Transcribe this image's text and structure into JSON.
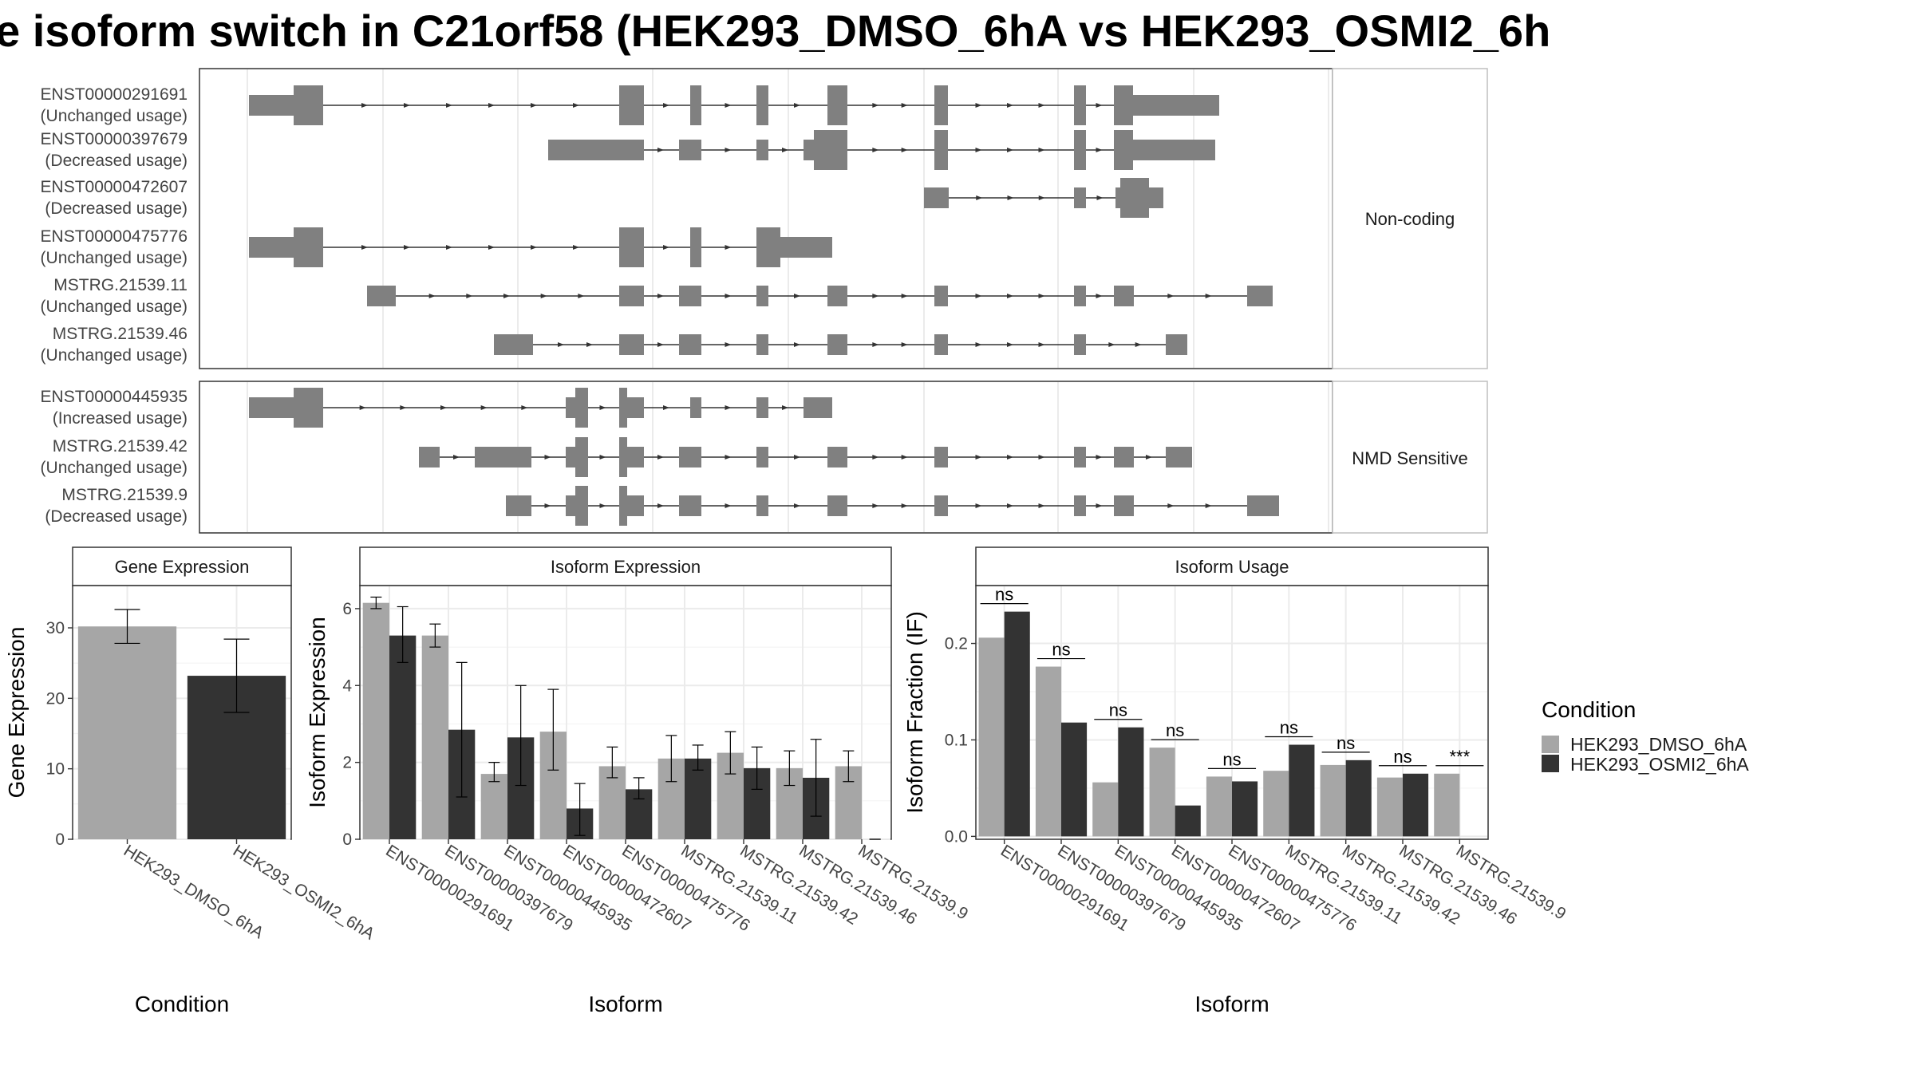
{
  "title": "e isoform switch in C21orf58 (HEK293_DMSO_6hA vs HEK293_OSMI2_6h",
  "colors": {
    "dmso": "#a6a6a6",
    "osmi": "#333333",
    "exon": "#808080",
    "grid": "#ebebeb",
    "panel_border": "#bfbfbf"
  },
  "structure": {
    "groups": [
      {
        "label": "Non-coding",
        "transcripts": [
          {
            "id": "ENST00000291691",
            "usage": "(Unchanged usage)"
          },
          {
            "id": "ENST00000397679",
            "usage": "(Decreased usage)"
          },
          {
            "id": "ENST00000472607",
            "usage": "(Decreased usage)"
          },
          {
            "id": "ENST00000475776",
            "usage": "(Unchanged usage)"
          },
          {
            "id": "MSTRG.21539.11",
            "usage": "(Unchanged usage)"
          },
          {
            "id": "MSTRG.21539.46",
            "usage": "(Unchanged usage)"
          }
        ]
      },
      {
        "label": "NMD Sensitive",
        "transcripts": [
          {
            "id": "ENST00000445935",
            "usage": "(Increased usage)"
          },
          {
            "id": "MSTRG.21539.42",
            "usage": "(Unchanged usage)"
          },
          {
            "id": "MSTRG.21539.9",
            "usage": "(Decreased usage)"
          }
        ]
      }
    ]
  },
  "chart_data": [
    {
      "type": "bar",
      "title": "Gene Expression",
      "xlabel": "Condition",
      "ylabel": "Gene Expression",
      "categories": [
        "HEK293_DMSO_6hA",
        "HEK293_OSMI2_6hA"
      ],
      "values": [
        30.2,
        23.2
      ],
      "error_low": [
        27.8,
        18.0
      ],
      "error_high": [
        32.6,
        28.4
      ],
      "ylim": [
        0,
        36
      ],
      "yticks": [
        0,
        10,
        20,
        30
      ]
    },
    {
      "type": "bar",
      "title": "Isoform Expression",
      "xlabel": "Isoform",
      "ylabel": "Isoform Expression",
      "categories": [
        "ENST00000291691",
        "ENST00000397679",
        "ENST00000445935",
        "ENST00000472607",
        "ENST00000475776",
        "MSTRG.21539.11",
        "MSTRG.21539.42",
        "MSTRG.21539.46",
        "MSTRG.21539.9"
      ],
      "series": [
        {
          "name": "HEK293_DMSO_6hA",
          "values": [
            6.15,
            5.3,
            1.7,
            2.8,
            1.9,
            2.1,
            2.25,
            1.85,
            1.9
          ],
          "error_low": [
            6.0,
            5.0,
            1.5,
            1.8,
            1.6,
            1.5,
            1.7,
            1.4,
            1.5
          ],
          "error_high": [
            6.3,
            5.6,
            2.0,
            3.9,
            2.4,
            2.7,
            2.8,
            2.3,
            2.3
          ]
        },
        {
          "name": "HEK293_OSMI2_6hA",
          "values": [
            5.3,
            2.85,
            2.65,
            0.8,
            1.3,
            2.1,
            1.85,
            1.6,
            0.0
          ],
          "error_low": [
            4.6,
            1.1,
            1.4,
            0.1,
            1.05,
            1.8,
            1.3,
            0.6,
            0.0
          ],
          "error_high": [
            6.05,
            4.6,
            4.0,
            1.45,
            1.6,
            2.45,
            2.4,
            2.6,
            0.0
          ]
        }
      ],
      "ylim": [
        0,
        6.6
      ],
      "yticks": [
        0,
        2,
        4,
        6
      ]
    },
    {
      "type": "bar",
      "title": "Isoform Usage",
      "xlabel": "Isoform",
      "ylabel": "Isoform Fraction (IF)",
      "categories": [
        "ENST00000291691",
        "ENST00000397679",
        "ENST00000445935",
        "ENST00000472607",
        "ENST00000475776",
        "MSTRG.21539.11",
        "MSTRG.21539.42",
        "MSTRG.21539.46",
        "MSTRG.21539.9"
      ],
      "series": [
        {
          "name": "HEK293_DMSO_6hA",
          "values": [
            0.206,
            0.176,
            0.056,
            0.092,
            0.062,
            0.068,
            0.074,
            0.061,
            0.065
          ]
        },
        {
          "name": "HEK293_OSMI2_6hA",
          "values": [
            0.233,
            0.118,
            0.113,
            0.032,
            0.057,
            0.095,
            0.079,
            0.065,
            0.0
          ]
        }
      ],
      "significance": [
        "ns",
        "ns",
        "ns",
        "ns",
        "ns",
        "ns",
        "ns",
        "ns",
        "***"
      ],
      "ylim": [
        -0.003,
        0.26
      ],
      "yticks": [
        0.0,
        0.1,
        0.2
      ],
      "ytick_labels": [
        "0.0",
        "0.1",
        "0.2"
      ]
    }
  ],
  "legend": {
    "title": "Condition",
    "entries": [
      "HEK293_DMSO_6hA",
      "HEK293_OSMI2_6hA"
    ],
    "placement": "right"
  }
}
